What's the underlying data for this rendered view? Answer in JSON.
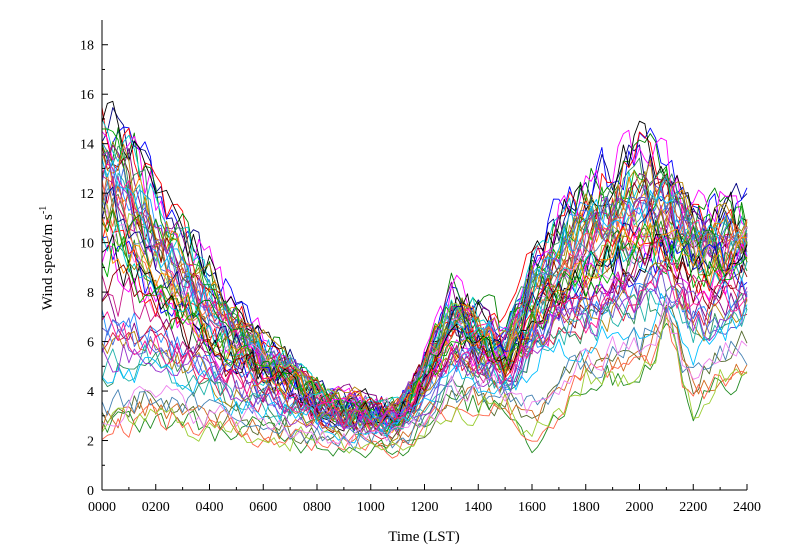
{
  "chart_data": {
    "type": "line",
    "title": "",
    "xlabel": "Time (LST)",
    "ylabel_main": "Wind speed/m s",
    "ylabel_sup": "-1",
    "xlim": [
      0,
      24
    ],
    "ylim": [
      0,
      19
    ],
    "x_ticks": [
      "0000",
      "0200",
      "0400",
      "0600",
      "0800",
      "1000",
      "1200",
      "1400",
      "1600",
      "1800",
      "2000",
      "2200",
      "2400"
    ],
    "y_ticks": [
      "0",
      "2",
      "4",
      "6",
      "8",
      "10",
      "12",
      "14",
      "16",
      "18"
    ],
    "grid": false,
    "legend": "none",
    "n_series": 60,
    "x": [
      0,
      1,
      2,
      3,
      4,
      5,
      6,
      7,
      8,
      9,
      10,
      11,
      12,
      13,
      14,
      15,
      16,
      17,
      18,
      19,
      20,
      21,
      22,
      23,
      24
    ],
    "profiles": {
      "high": [
        14.8,
        14.0,
        12.2,
        10.6,
        9.0,
        7.2,
        6.0,
        5.2,
        4.0,
        3.6,
        3.4,
        3.1,
        5.2,
        7.8,
        7.2,
        6.3,
        9.0,
        11.0,
        12.0,
        12.8,
        13.5,
        12.5,
        11.0,
        11.3,
        11.0
      ],
      "medium": [
        11.5,
        10.5,
        8.6,
        7.6,
        6.6,
        5.7,
        5.0,
        4.5,
        3.5,
        3.2,
        3.1,
        3.0,
        4.6,
        6.6,
        6.0,
        5.2,
        7.0,
        8.3,
        9.0,
        9.6,
        10.1,
        10.5,
        9.6,
        9.2,
        9.6
      ],
      "low": [
        4.6,
        4.9,
        5.2,
        4.6,
        4.2,
        3.8,
        3.5,
        3.2,
        2.9,
        2.7,
        2.6,
        2.6,
        3.4,
        5.0,
        4.8,
        4.3,
        5.5,
        6.5,
        6.6,
        7.1,
        7.4,
        7.8,
        6.2,
        6.8,
        7.2
      ],
      "min": [
        2.4,
        2.8,
        3.0,
        2.7,
        2.5,
        2.3,
        2.4,
        2.1,
        2.0,
        1.9,
        1.9,
        1.7,
        2.5,
        3.5,
        3.4,
        3.5,
        2.0,
        3.2,
        4.5,
        4.6,
        4.8,
        6.5,
        3.2,
        4.5,
        5.0
      ]
    },
    "colors": [
      "#000080",
      "#0000ff",
      "#ff0000",
      "#008000",
      "#ff00ff",
      "#00ced1",
      "#808000",
      "#800080",
      "#000000",
      "#ff8c00",
      "#1e90ff",
      "#dc143c",
      "#00aa00",
      "#8b0000",
      "#4169e1",
      "#c71585",
      "#2e8b57",
      "#b8860b",
      "#6a5acd",
      "#20b2aa",
      "#ff1493",
      "#556b2f",
      "#d2691e",
      "#00bfff",
      "#9932cc",
      "#228b22",
      "#ff6347",
      "#4682b4",
      "#9acd32",
      "#ee82ee"
    ]
  }
}
